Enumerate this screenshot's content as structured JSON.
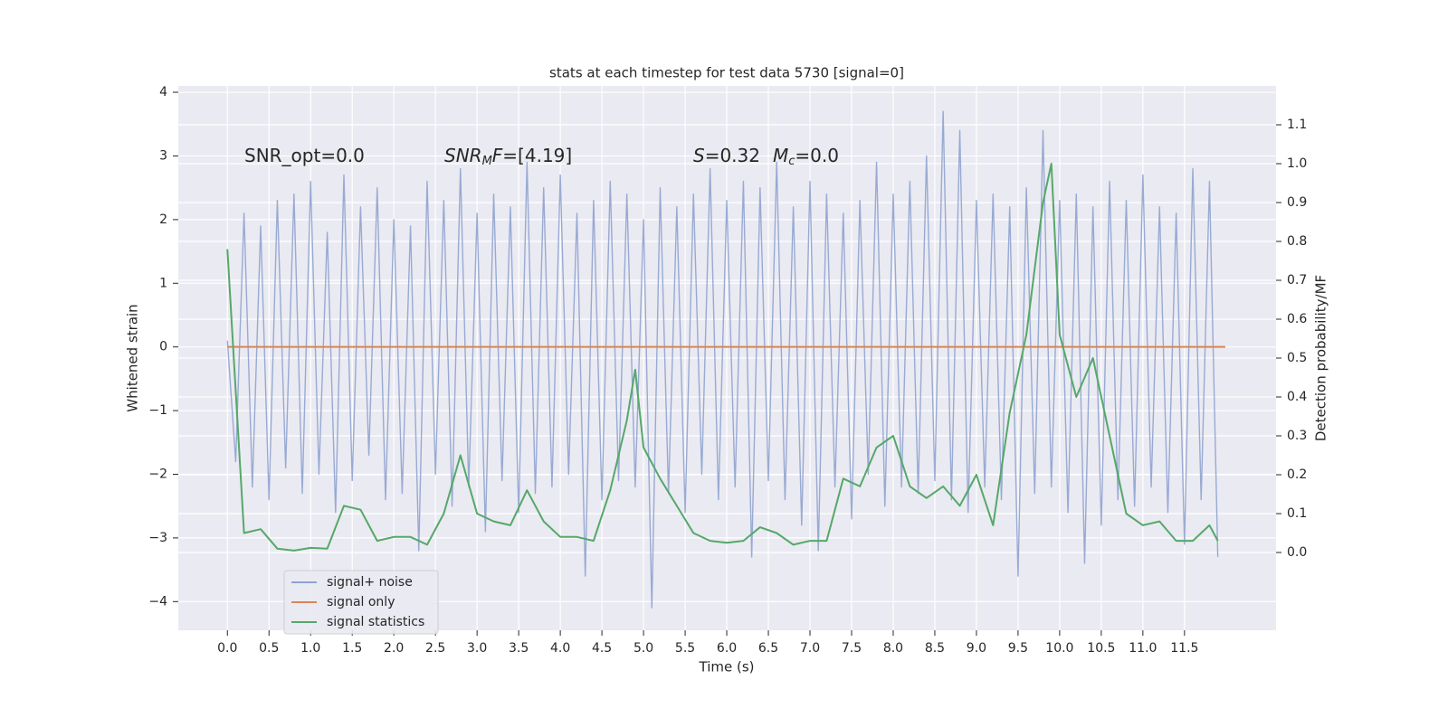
{
  "chart_data": {
    "type": "line",
    "title": "stats at each timestep for test data 5730 [signal=0]",
    "x_label": "Time (s)",
    "y_label": "Whitened strain",
    "y2_label": "Detection probability/MF",
    "annotations": [
      [
        "SNR_opt=0.0"
      ],
      [
        "SNR",
        "M",
        "F",
        "=[4.19]"
      ],
      [
        "S",
        "=0.32",
        "M",
        "c",
        "=0.0"
      ]
    ],
    "xlim": [
      -0.59,
      12.6
    ],
    "ylim": [
      -4.45,
      4.1
    ],
    "y2lim": [
      -0.2,
      1.2
    ],
    "xticks": [
      {
        "value": 0,
        "label": "0.0"
      },
      0.5,
      {
        "value": 1,
        "label": "1.0"
      },
      1.5,
      {
        "value": 2,
        "label": "2.0"
      },
      2.5,
      {
        "value": 3,
        "label": "3.0"
      },
      3.5,
      {
        "value": 4,
        "label": "4.0"
      },
      4.5,
      {
        "value": 5,
        "label": "5.0"
      },
      5.5,
      {
        "value": 6,
        "label": "6.0"
      },
      6.5,
      {
        "value": 7,
        "label": "7.0"
      },
      7.5,
      {
        "value": 8,
        "label": "8.0"
      },
      8.5,
      {
        "value": 9,
        "label": "9.0"
      },
      9.5,
      {
        "value": 10,
        "label": "10.0"
      },
      10.5,
      {
        "value": 11,
        "label": "11.0"
      },
      11.5
    ],
    "yticks": [
      {
        "value": -4,
        "label": "−4"
      },
      {
        "value": -3,
        "label": "−3"
      },
      {
        "value": -2,
        "label": "−2"
      },
      {
        "value": -1,
        "label": "−1"
      },
      0,
      1,
      2,
      3,
      4
    ],
    "y2ticks": [
      {
        "value": 0,
        "label": "0.0"
      },
      0.1,
      0.2,
      0.3,
      0.4,
      0.5,
      0.6,
      0.7,
      0.8,
      0.9,
      {
        "value": 1,
        "label": "1.0"
      },
      1.1
    ],
    "grid": true,
    "legend": "lower left",
    "series": [
      {
        "name": "signal+ noise",
        "color": "#8fa3cf",
        "x": [
          0.0,
          0.1,
          0.2,
          0.3,
          0.4,
          0.5,
          0.6,
          0.7,
          0.8,
          0.9,
          1.0,
          1.1,
          1.2,
          1.3,
          1.4,
          1.5,
          1.6,
          1.7,
          1.8,
          1.9,
          2.0,
          2.1,
          2.2,
          2.3,
          2.4,
          2.5,
          2.6,
          2.7,
          2.8,
          2.9,
          3.0,
          3.1,
          3.2,
          3.3,
          3.4,
          3.5,
          3.6,
          3.7,
          3.8,
          3.9,
          4.0,
          4.1,
          4.2,
          4.3,
          4.4,
          4.5,
          4.6,
          4.7,
          4.8,
          4.9,
          5.0,
          5.1,
          5.2,
          5.3,
          5.4,
          5.5,
          5.6,
          5.7,
          5.8,
          5.9,
          6.0,
          6.1,
          6.2,
          6.3,
          6.4,
          6.5,
          6.6,
          6.7,
          6.8,
          6.9,
          7.0,
          7.1,
          7.2,
          7.3,
          7.4,
          7.5,
          7.6,
          7.7,
          7.8,
          7.9,
          8.0,
          8.1,
          8.2,
          8.3,
          8.4,
          8.5,
          8.6,
          8.7,
          8.8,
          8.9,
          9.0,
          9.1,
          9.2,
          9.3,
          9.4,
          9.5,
          9.6,
          9.7,
          9.8,
          9.9,
          10.0,
          10.1,
          10.2,
          10.3,
          10.4,
          10.5,
          10.6,
          10.7,
          10.8,
          10.9,
          11.0,
          11.1,
          11.2,
          11.3,
          11.4,
          11.5,
          11.6,
          11.7,
          11.8,
          11.9
        ],
        "values": [
          0.1,
          -1.8,
          2.1,
          -2.2,
          1.9,
          -2.4,
          2.3,
          -1.9,
          2.4,
          -2.3,
          2.6,
          -2.0,
          1.8,
          -2.6,
          2.7,
          -2.1,
          2.2,
          -1.7,
          2.5,
          -2.4,
          2.0,
          -2.3,
          1.9,
          -3.2,
          2.6,
          -2.0,
          2.3,
          -2.5,
          2.8,
          -2.2,
          2.1,
          -2.9,
          2.4,
          -2.1,
          2.2,
          -2.6,
          2.9,
          -2.3,
          2.5,
          -2.2,
          2.7,
          -2.0,
          2.1,
          -3.6,
          2.3,
          -2.4,
          2.6,
          -2.1,
          2.4,
          -2.2,
          2.0,
          -4.1,
          2.5,
          -2.3,
          2.2,
          -2.6,
          2.4,
          -2.0,
          2.8,
          -2.4,
          2.3,
          -2.2,
          2.6,
          -3.3,
          2.5,
          -2.1,
          2.9,
          -2.4,
          2.2,
          -2.8,
          2.6,
          -3.2,
          2.4,
          -2.2,
          2.1,
          -2.7,
          2.3,
          -2.0,
          2.9,
          -2.5,
          2.4,
          -2.2,
          2.6,
          -2.3,
          3.0,
          -2.1,
          3.7,
          -2.4,
          3.4,
          -2.6,
          2.3,
          -2.2,
          2.4,
          -2.4,
          2.2,
          -3.6,
          2.5,
          -2.3,
          3.4,
          -2.2,
          2.3,
          -2.6,
          2.4,
          -3.4,
          2.2,
          -2.8,
          2.6,
          -2.4,
          2.3,
          -2.5,
          2.7,
          -2.2,
          2.2,
          -2.6,
          2.1,
          -3.1,
          2.8,
          -2.4,
          2.6,
          -3.3
        ]
      },
      {
        "name": "signal only",
        "color": "#dd8452",
        "x": [
          0.0,
          11.99
        ],
        "values": [
          0,
          0
        ]
      },
      {
        "name": "signal statistics",
        "color": "#55a868",
        "axis": "y2",
        "x": [
          0.0,
          0.2,
          0.4,
          0.6,
          0.8,
          1.0,
          1.2,
          1.4,
          1.6,
          1.8,
          2.0,
          2.2,
          2.4,
          2.6,
          2.8,
          3.0,
          3.2,
          3.4,
          3.6,
          3.8,
          4.0,
          4.2,
          4.4,
          4.6,
          4.8,
          4.9,
          5.0,
          5.2,
          5.4,
          5.6,
          5.8,
          6.0,
          6.2,
          6.4,
          6.6,
          6.8,
          7.0,
          7.2,
          7.4,
          7.6,
          7.8,
          8.0,
          8.2,
          8.4,
          8.6,
          8.8,
          9.0,
          9.2,
          9.4,
          9.6,
          9.8,
          9.9,
          10.0,
          10.2,
          10.4,
          10.6,
          10.8,
          11.0,
          11.2,
          11.4,
          11.6,
          11.8,
          11.9
        ],
        "values": [
          0.78,
          0.05,
          0.06,
          0.01,
          0.005,
          0.012,
          0.01,
          0.12,
          0.11,
          0.03,
          0.04,
          0.04,
          0.02,
          0.1,
          0.25,
          0.1,
          0.08,
          0.07,
          0.16,
          0.08,
          0.04,
          0.04,
          0.03,
          0.16,
          0.34,
          0.47,
          0.27,
          0.19,
          0.12,
          0.05,
          0.03,
          0.025,
          0.03,
          0.065,
          0.05,
          0.02,
          0.03,
          0.03,
          0.19,
          0.17,
          0.27,
          0.3,
          0.17,
          0.14,
          0.17,
          0.12,
          0.2,
          0.07,
          0.36,
          0.56,
          0.9,
          1.0,
          0.56,
          0.4,
          0.5,
          0.3,
          0.1,
          0.07,
          0.08,
          0.03,
          0.03,
          0.07,
          0.03
        ]
      }
    ]
  }
}
